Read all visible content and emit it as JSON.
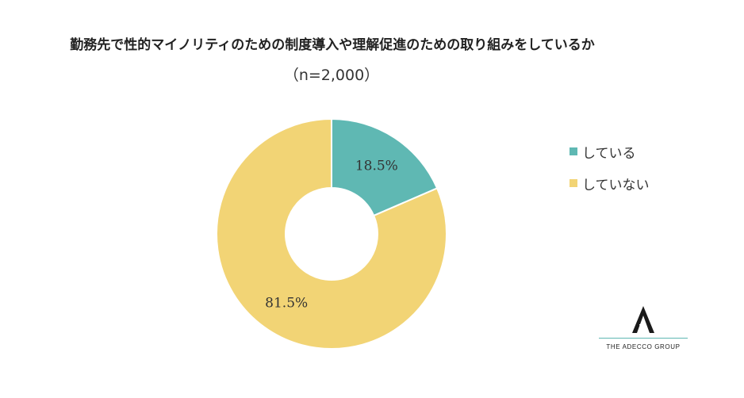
{
  "chart_data": {
    "type": "pie",
    "title": "勤務先で性的マイノリティのための制度導入や理解促進のための取り組みをしているか",
    "subtitle": "（n=2,000）",
    "categories": [
      "している",
      "していない"
    ],
    "values": [
      18.5,
      81.5
    ],
    "value_labels": [
      "18.5%",
      "81.5%"
    ],
    "colors": [
      "#5fb8b3",
      "#f2d475"
    ],
    "donut": true,
    "legend_position": "right"
  },
  "logo": {
    "text": "THE ADECCO GROUP"
  }
}
